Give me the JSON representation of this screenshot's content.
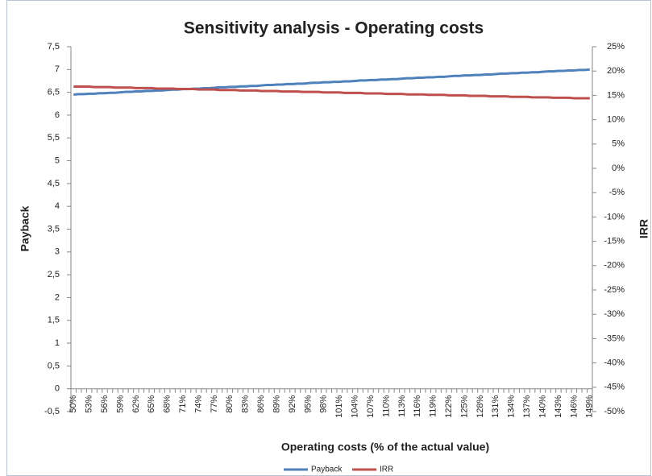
{
  "chart_data": {
    "type": "line",
    "title": "Sensitivity analysis - Operating costs",
    "x_label": "Operating costs (% of the actual value)",
    "y_label": "Payback",
    "y2_label": "IRR",
    "categories": [
      "50%",
      null,
      null,
      "53%",
      null,
      null,
      "56%",
      null,
      null,
      "59%",
      null,
      null,
      "62%",
      null,
      null,
      "65%",
      null,
      null,
      "68%",
      null,
      null,
      "71%",
      null,
      null,
      "74%",
      null,
      null,
      "77%",
      null,
      null,
      "80%",
      null,
      null,
      "83%",
      null,
      null,
      "86%",
      null,
      null,
      "89%",
      null,
      null,
      "92%",
      null,
      null,
      "95%",
      null,
      null,
      "98%",
      null,
      null,
      "101%",
      null,
      null,
      "104%",
      null,
      null,
      "107%",
      null,
      null,
      "110%",
      null,
      null,
      "113%",
      null,
      null,
      "116%",
      null,
      null,
      "119%",
      null,
      null,
      "122%",
      null,
      null,
      "125%",
      null,
      null,
      "128%",
      null,
      null,
      "131%",
      null,
      null,
      "134%",
      null,
      null,
      "137%",
      null,
      null,
      "140%",
      null,
      null,
      "143%",
      null,
      null,
      "146%",
      null,
      null,
      "149%"
    ],
    "series": [
      {
        "name": "Payback",
        "color": "#4f81bd",
        "axis": "y",
        "values": [
          6.45,
          6.46,
          6.46,
          6.47,
          6.47,
          6.48,
          6.48,
          6.49,
          6.49,
          6.5,
          6.51,
          6.51,
          6.52,
          6.52,
          6.53,
          6.53,
          6.54,
          6.54,
          6.55,
          6.56,
          6.56,
          6.57,
          6.57,
          6.58,
          6.58,
          6.59,
          6.59,
          6.6,
          6.61,
          6.61,
          6.62,
          6.62,
          6.63,
          6.63,
          6.64,
          6.64,
          6.65,
          6.66,
          6.66,
          6.67,
          6.67,
          6.68,
          6.68,
          6.69,
          6.69,
          6.7,
          6.71,
          6.71,
          6.72,
          6.72,
          6.73,
          6.73,
          6.74,
          6.74,
          6.75,
          6.76,
          6.76,
          6.77,
          6.77,
          6.78,
          6.78,
          6.79,
          6.79,
          6.8,
          6.81,
          6.81,
          6.82,
          6.82,
          6.83,
          6.83,
          6.84,
          6.84,
          6.85,
          6.86,
          6.86,
          6.87,
          6.87,
          6.88,
          6.88,
          6.89,
          6.89,
          6.9,
          6.91,
          6.91,
          6.92,
          6.92,
          6.93,
          6.93,
          6.94,
          6.94,
          6.95,
          6.96,
          6.96,
          6.97,
          6.97,
          6.98,
          6.98,
          6.99,
          6.99,
          7.0
        ]
      },
      {
        "name": "IRR",
        "color": "#c0504d",
        "axis": "y2",
        "values": [
          16.8,
          16.8,
          16.8,
          16.8,
          16.7,
          16.7,
          16.7,
          16.7,
          16.6,
          16.6,
          16.6,
          16.6,
          16.5,
          16.5,
          16.5,
          16.5,
          16.4,
          16.4,
          16.4,
          16.4,
          16.3,
          16.3,
          16.3,
          16.3,
          16.2,
          16.2,
          16.2,
          16.2,
          16.1,
          16.1,
          16.1,
          16.1,
          16.0,
          16.0,
          16.0,
          16.0,
          15.9,
          15.9,
          15.9,
          15.9,
          15.8,
          15.8,
          15.8,
          15.8,
          15.7,
          15.7,
          15.7,
          15.7,
          15.6,
          15.6,
          15.6,
          15.6,
          15.5,
          15.5,
          15.5,
          15.5,
          15.4,
          15.4,
          15.4,
          15.4,
          15.3,
          15.3,
          15.3,
          15.3,
          15.2,
          15.2,
          15.2,
          15.2,
          15.1,
          15.1,
          15.1,
          15.1,
          15.0,
          15.0,
          15.0,
          15.0,
          14.9,
          14.9,
          14.9,
          14.9,
          14.8,
          14.8,
          14.8,
          14.8,
          14.7,
          14.7,
          14.7,
          14.7,
          14.6,
          14.6,
          14.6,
          14.6,
          14.5,
          14.5,
          14.5,
          14.5,
          14.4,
          14.4,
          14.4,
          14.4
        ]
      }
    ],
    "ylim": [
      -0.5,
      7.5
    ],
    "yticks": [
      {
        "value": -0.5,
        "label": "-0,5"
      },
      0,
      {
        "value": 0.5,
        "label": "0,5"
      },
      1,
      {
        "value": 1.5,
        "label": "1,5"
      },
      2,
      {
        "value": 2.5,
        "label": "2,5"
      },
      3,
      {
        "value": 3.5,
        "label": "3,5"
      },
      4,
      {
        "value": 4.5,
        "label": "4,5"
      },
      5,
      {
        "value": 5.5,
        "label": "5,5"
      },
      6,
      {
        "value": 6.5,
        "label": "6,5"
      },
      7,
      {
        "value": 7.5,
        "label": "7,5"
      }
    ],
    "y2lim": [
      -50,
      25
    ],
    "y2ticks": [
      {
        "value": -50,
        "label": "-50%"
      },
      {
        "value": -45,
        "label": "-45%"
      },
      {
        "value": -40,
        "label": "-40%"
      },
      {
        "value": -35,
        "label": "-35%"
      },
      {
        "value": -30,
        "label": "-30%"
      },
      {
        "value": -25,
        "label": "-25%"
      },
      {
        "value": -20,
        "label": "-20%"
      },
      {
        "value": -15,
        "label": "-15%"
      },
      {
        "value": -10,
        "label": "-10%"
      },
      {
        "value": -5,
        "label": "-5%"
      },
      {
        "value": 0,
        "label": "0%"
      },
      {
        "value": 5,
        "label": "5%"
      },
      {
        "value": 10,
        "label": "10%"
      },
      {
        "value": 15,
        "label": "15%"
      },
      {
        "value": 20,
        "label": "20%"
      },
      {
        "value": 25,
        "label": "25%"
      }
    ],
    "grid": false,
    "legend": "bottom"
  }
}
